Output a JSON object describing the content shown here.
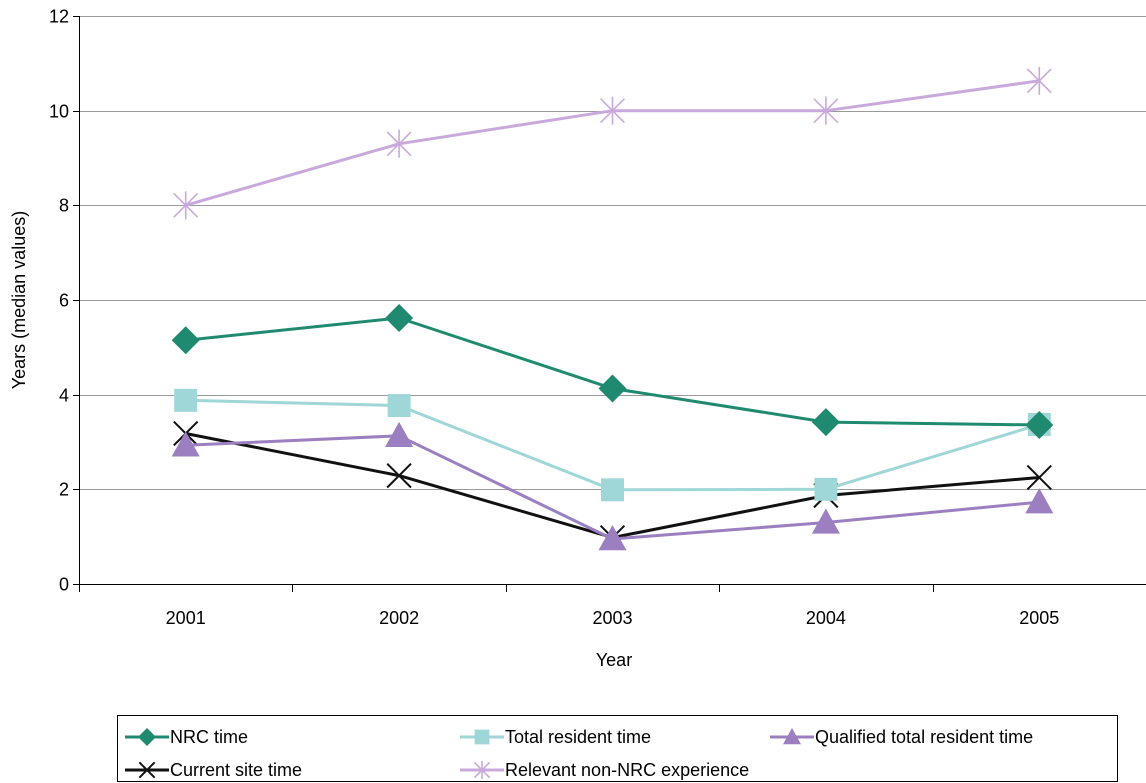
{
  "chart_data": {
    "type": "line",
    "title": "",
    "xlabel": "Year",
    "ylabel": "Years (median values)",
    "categories": [
      "2001",
      "2002",
      "2003",
      "2004",
      "2005"
    ],
    "ylim": [
      0,
      12
    ],
    "yticks": [
      0,
      2,
      4,
      6,
      8,
      10,
      12
    ],
    "grid": "horizontal",
    "legend_position": "bottom",
    "series": [
      {
        "name": "NRC time",
        "color": "#1f8a70",
        "marker": "diamond",
        "values": [
          5.15,
          5.62,
          4.13,
          3.42,
          3.36
        ]
      },
      {
        "name": "Total resident time",
        "color": "#9fd6d8",
        "marker": "square",
        "values": [
          3.88,
          3.77,
          1.99,
          2.0,
          3.37
        ]
      },
      {
        "name": "Qualified total resident time",
        "color": "#9b7fc0",
        "marker": "triangle",
        "values": [
          2.93,
          3.13,
          0.95,
          1.3,
          1.73
        ]
      },
      {
        "name": "Current site time",
        "color": "#111111",
        "marker": "x",
        "values": [
          3.18,
          2.29,
          0.98,
          1.87,
          2.25
        ]
      },
      {
        "name": "Relevant non-NRC experience",
        "color": "#c9a9dc",
        "marker": "star",
        "values": [
          8.0,
          9.3,
          10.0,
          10.0,
          10.63
        ]
      }
    ]
  }
}
